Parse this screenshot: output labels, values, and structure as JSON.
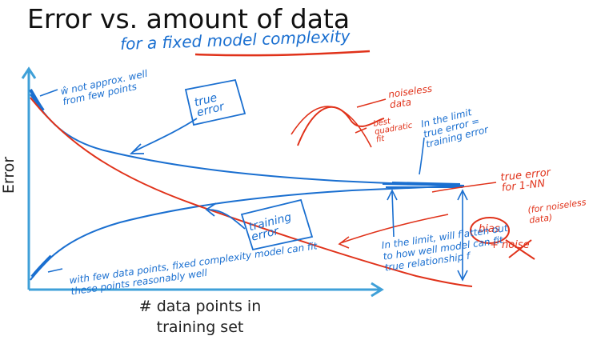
{
  "title": "Error vs. amount of data",
  "subtitle": "for a fixed model complexity",
  "y_axis_label": "Error",
  "x_axis_label_line1": "# data points in",
  "x_axis_label_line2": "training set",
  "colors": {
    "axis": "#3fa0d8",
    "ink_blue": "#1a6fd0",
    "ink_red": "#e0321a"
  },
  "annotations": {
    "w_hat": "ŵ not approx. well from few points",
    "true_error_box": "true error",
    "training_error_box": "training error",
    "noiseless_data": "noiseless data",
    "best_fit": "best quadratic fit",
    "limit_note": "In the limit true error = training error",
    "true_error_1nn": "true error for 1-NN",
    "noiseless_paren": "(for noiseless data)",
    "bias": "bias",
    "noise": "+ noise",
    "flatten_note": "In the limit, will flatten out to how well model can fit true relationship f",
    "few_points_note": "with few data points, fixed complexity model can fit these points reasonably well"
  }
}
